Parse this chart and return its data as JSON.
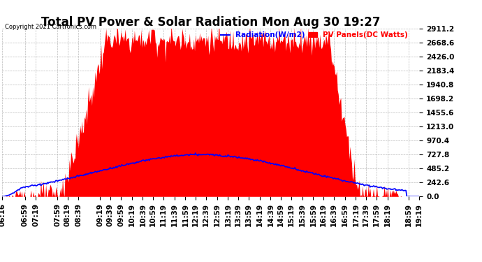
{
  "title": "Total PV Power & Solar Radiation Mon Aug 30 19:27",
  "copyright": "Copyright 2021 Cartronics.com",
  "legend_radiation": "Radiation(W/m2)",
  "legend_pv": "PV Panels(DC Watts)",
  "ymax": 2911.2,
  "ymin": 0.0,
  "ytick_interval": 242.6,
  "x_labels": [
    "06:16",
    "06:59",
    "07:19",
    "07:59",
    "08:19",
    "08:39",
    "09:19",
    "09:39",
    "09:59",
    "10:19",
    "10:39",
    "10:59",
    "11:19",
    "11:39",
    "11:59",
    "12:19",
    "12:39",
    "12:59",
    "13:19",
    "13:39",
    "13:59",
    "14:19",
    "14:39",
    "14:59",
    "15:19",
    "15:39",
    "15:59",
    "16:19",
    "16:39",
    "16:59",
    "17:19",
    "17:39",
    "17:59",
    "18:19",
    "18:59",
    "19:19"
  ],
  "background_color": "#ffffff",
  "plot_bg_color": "#ffffff",
  "grid_color": "#aaaaaa",
  "pv_fill_color": "#ff0000",
  "radiation_color": "#0000ff",
  "title_fontsize": 12,
  "tick_fontsize": 7.5,
  "radiation_peak": 727.8,
  "pv_peak": 2750.0
}
